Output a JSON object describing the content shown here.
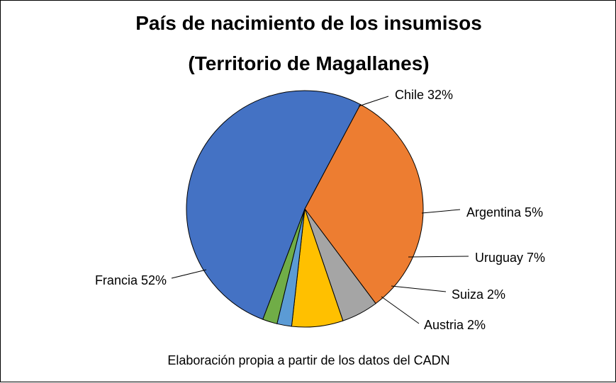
{
  "chart_data": {
    "type": "pie",
    "title": "País de nacimiento de los insumisos",
    "subtitle": "(Territorio de Magallanes)",
    "source_note": "Elaboración propia a partir de los datos del CADN",
    "slices": [
      {
        "name": "Chile",
        "value": 32,
        "label": "Chile 32%",
        "color": "#ED7D31"
      },
      {
        "name": "Argentina",
        "value": 5,
        "label": "Argentina 5%",
        "color": "#A5A5A5"
      },
      {
        "name": "Uruguay",
        "value": 7,
        "label": "Uruguay 7%",
        "color": "#FFC000"
      },
      {
        "name": "Suiza",
        "value": 2,
        "label": "Suiza 2%",
        "color": "#5B9BD5"
      },
      {
        "name": "Austria",
        "value": 2,
        "label": "Austria 2%",
        "color": "#70AD47"
      },
      {
        "name": "Francia",
        "value": 52,
        "label": "Francia 52%",
        "color": "#4472C4"
      }
    ]
  }
}
